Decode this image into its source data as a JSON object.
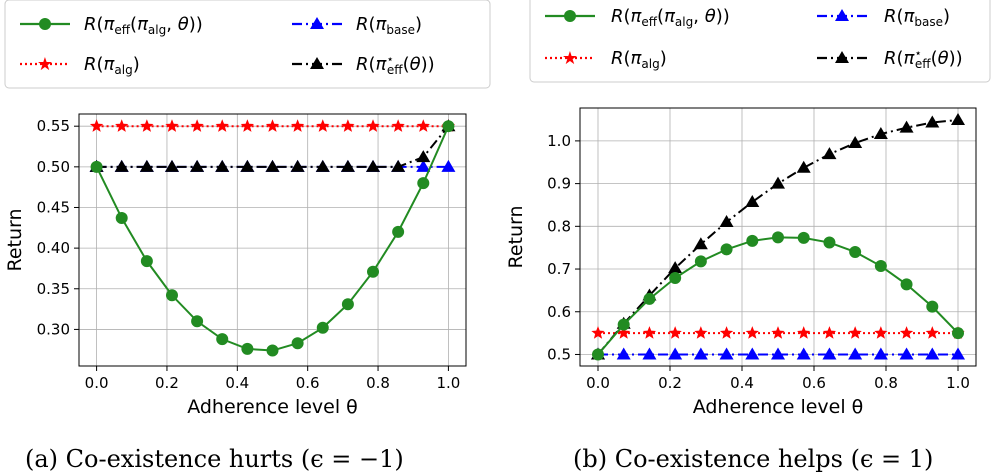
{
  "chart_data": [
    {
      "type": "line",
      "caption": "(a) Co-existence hurts (ϵ = −1)",
      "xlabel": "Adherence level θ",
      "ylabel": "Return",
      "xlim": [
        -0.05,
        1.05
      ],
      "ylim": [
        0.255,
        0.565
      ],
      "xticks": [
        "0.0",
        "0.2",
        "0.4",
        "0.6",
        "0.8",
        "1.0"
      ],
      "yticks": [
        "0.30",
        "0.35",
        "0.40",
        "0.45",
        "0.50",
        "0.55"
      ],
      "grid": true,
      "legend_position": "top",
      "x": [
        0,
        0.0714,
        0.1429,
        0.2143,
        0.2857,
        0.3571,
        0.4286,
        0.5,
        0.5714,
        0.6429,
        0.7143,
        0.7857,
        0.8571,
        0.9286,
        1.0
      ],
      "series": [
        {
          "name": "R(π_eff(π_alg, θ))",
          "color": "#228b22",
          "marker": "circle",
          "line": "solid",
          "values": [
            0.5,
            0.437,
            0.384,
            0.342,
            0.31,
            0.288,
            0.276,
            0.274,
            0.283,
            0.302,
            0.331,
            0.371,
            0.42,
            0.48,
            0.55
          ]
        },
        {
          "name": "R(π_alg)",
          "color": "#ff0000",
          "marker": "star",
          "line": "dotted",
          "values": [
            0.55,
            0.55,
            0.55,
            0.55,
            0.55,
            0.55,
            0.55,
            0.55,
            0.55,
            0.55,
            0.55,
            0.55,
            0.55,
            0.55,
            0.55
          ]
        },
        {
          "name": "R(π_base)",
          "color": "#0000ff",
          "marker": "triangle",
          "line": "dashdot",
          "values": [
            0.5,
            0.5,
            0.5,
            0.5,
            0.5,
            0.5,
            0.5,
            0.5,
            0.5,
            0.5,
            0.5,
            0.5,
            0.5,
            0.5,
            0.5
          ]
        },
        {
          "name": "R(π*_eff(θ))",
          "color": "#000000",
          "marker": "triangle",
          "line": "dashdot",
          "values": [
            0.5,
            0.5,
            0.5,
            0.5,
            0.5,
            0.5,
            0.5,
            0.5,
            0.5,
            0.5,
            0.5,
            0.5,
            0.5,
            0.512,
            0.55
          ]
        }
      ]
    },
    {
      "type": "line",
      "caption": "(b) Co-existence helps (ϵ = 1)",
      "xlabel": "Adherence level θ",
      "ylabel": "Return",
      "xlim": [
        -0.05,
        1.05
      ],
      "ylim": [
        0.473,
        1.077
      ],
      "xticks": [
        "0.0",
        "0.2",
        "0.4",
        "0.6",
        "0.8",
        "1.0"
      ],
      "yticks": [
        "0.5",
        "0.6",
        "0.7",
        "0.8",
        "0.9",
        "1.0"
      ],
      "grid": true,
      "legend_position": "top",
      "x": [
        0,
        0.0714,
        0.1429,
        0.2143,
        0.2857,
        0.3571,
        0.4286,
        0.5,
        0.5714,
        0.6429,
        0.7143,
        0.7857,
        0.8571,
        0.9286,
        1.0
      ],
      "series": [
        {
          "name": "R(π_eff(π_alg, θ))",
          "color": "#228b22",
          "marker": "circle",
          "line": "solid",
          "values": [
            0.5,
            0.57,
            0.63,
            0.679,
            0.718,
            0.746,
            0.766,
            0.774,
            0.773,
            0.762,
            0.74,
            0.707,
            0.664,
            0.612,
            0.55
          ]
        },
        {
          "name": "R(π_alg)",
          "color": "#ff0000",
          "marker": "star",
          "line": "dotted",
          "values": [
            0.55,
            0.55,
            0.55,
            0.55,
            0.55,
            0.55,
            0.55,
            0.55,
            0.55,
            0.55,
            0.55,
            0.55,
            0.55,
            0.55,
            0.55
          ]
        },
        {
          "name": "R(π_base)",
          "color": "#0000ff",
          "marker": "triangle",
          "line": "dashdot",
          "values": [
            0.5,
            0.5,
            0.5,
            0.5,
            0.5,
            0.5,
            0.5,
            0.5,
            0.5,
            0.5,
            0.5,
            0.5,
            0.5,
            0.5,
            0.5
          ]
        },
        {
          "name": "R(π*_eff(θ))",
          "color": "#000000",
          "marker": "triangle",
          "line": "dashdot",
          "values": [
            0.5,
            0.572,
            0.638,
            0.702,
            0.758,
            0.81,
            0.857,
            0.9,
            0.937,
            0.969,
            0.995,
            1.016,
            1.031,
            1.043,
            1.049
          ]
        }
      ]
    }
  ]
}
